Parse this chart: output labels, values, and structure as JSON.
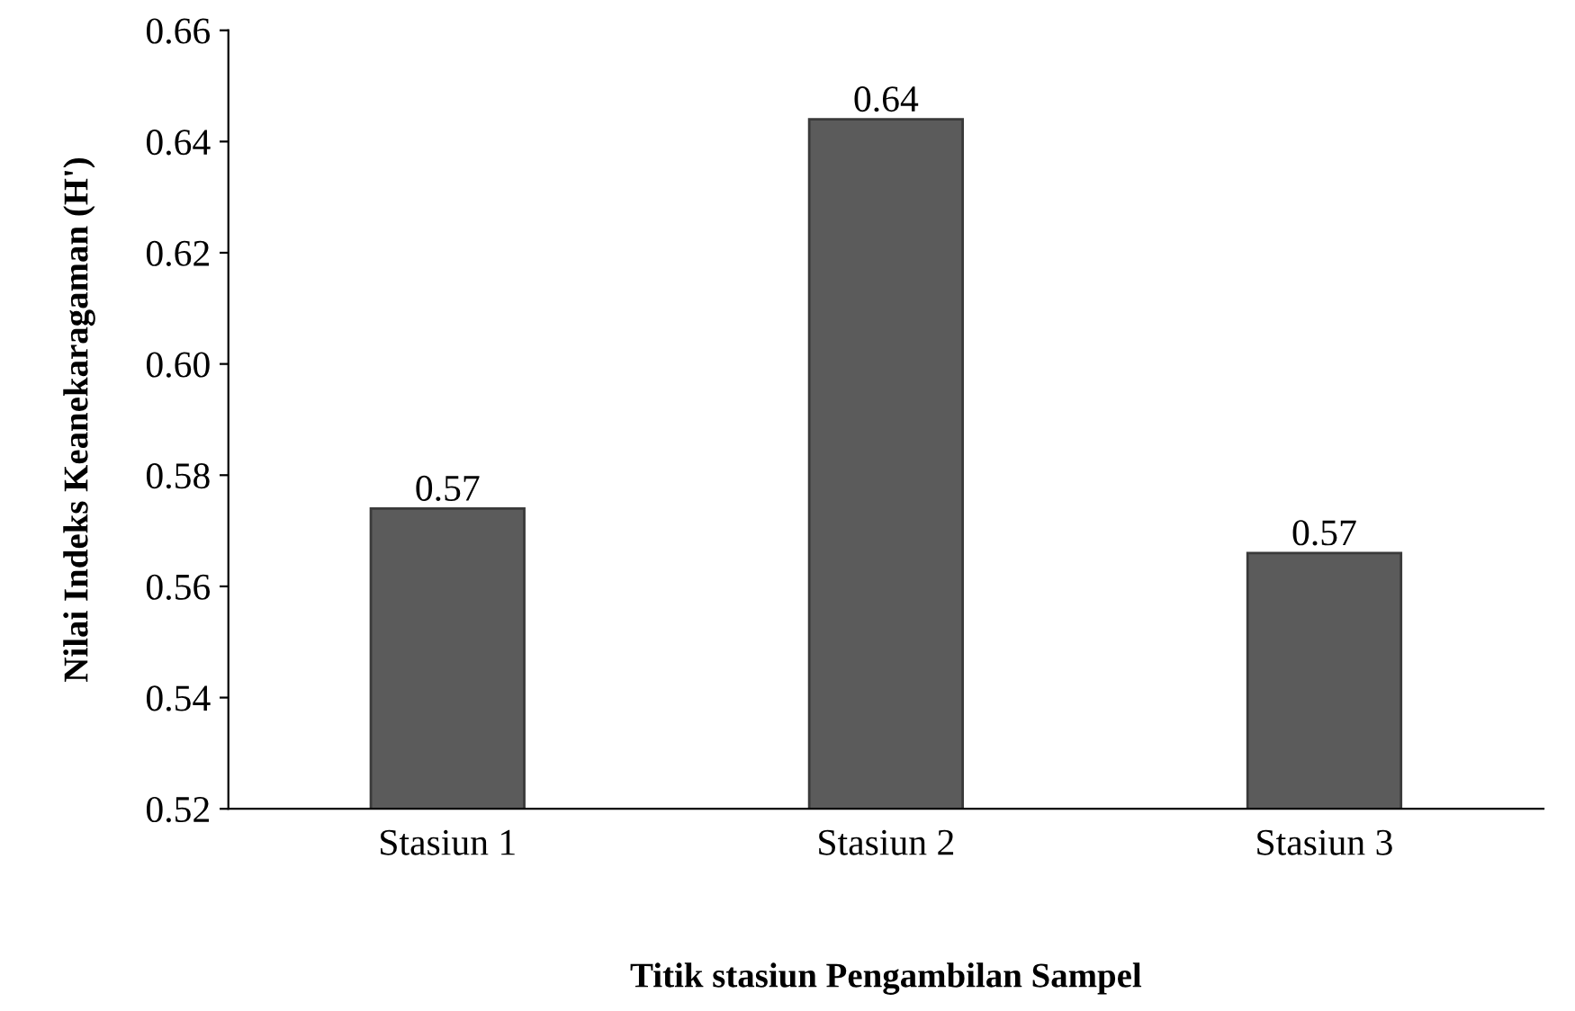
{
  "chart_data": {
    "type": "bar",
    "xlabel": "Titik stasiun Pengambilan Sampel",
    "ylabel": "Nilai Indeks Keanekaragaman (H')",
    "categories": [
      "Stasiun 1",
      "Stasiun 2",
      "Stasiun 3"
    ],
    "values": [
      0.574,
      0.644,
      0.566
    ],
    "value_labels": [
      "0.57",
      "0.64",
      "0.57"
    ],
    "color": "#5b5b5b",
    "ylim": [
      0.52,
      0.66
    ],
    "yticks": [
      {
        "value": 0.52,
        "label": "0.52"
      },
      {
        "value": 0.54,
        "label": "0.54"
      },
      {
        "value": 0.56,
        "label": "0.56"
      },
      {
        "value": 0.58,
        "label": "0.58"
      },
      {
        "value": 0.6,
        "label": "0.60"
      },
      {
        "value": 0.62,
        "label": "0.62"
      },
      {
        "value": 0.64,
        "label": "0.64"
      },
      {
        "value": 0.66,
        "label": "0.66"
      }
    ],
    "grid": false,
    "legend": false
  }
}
